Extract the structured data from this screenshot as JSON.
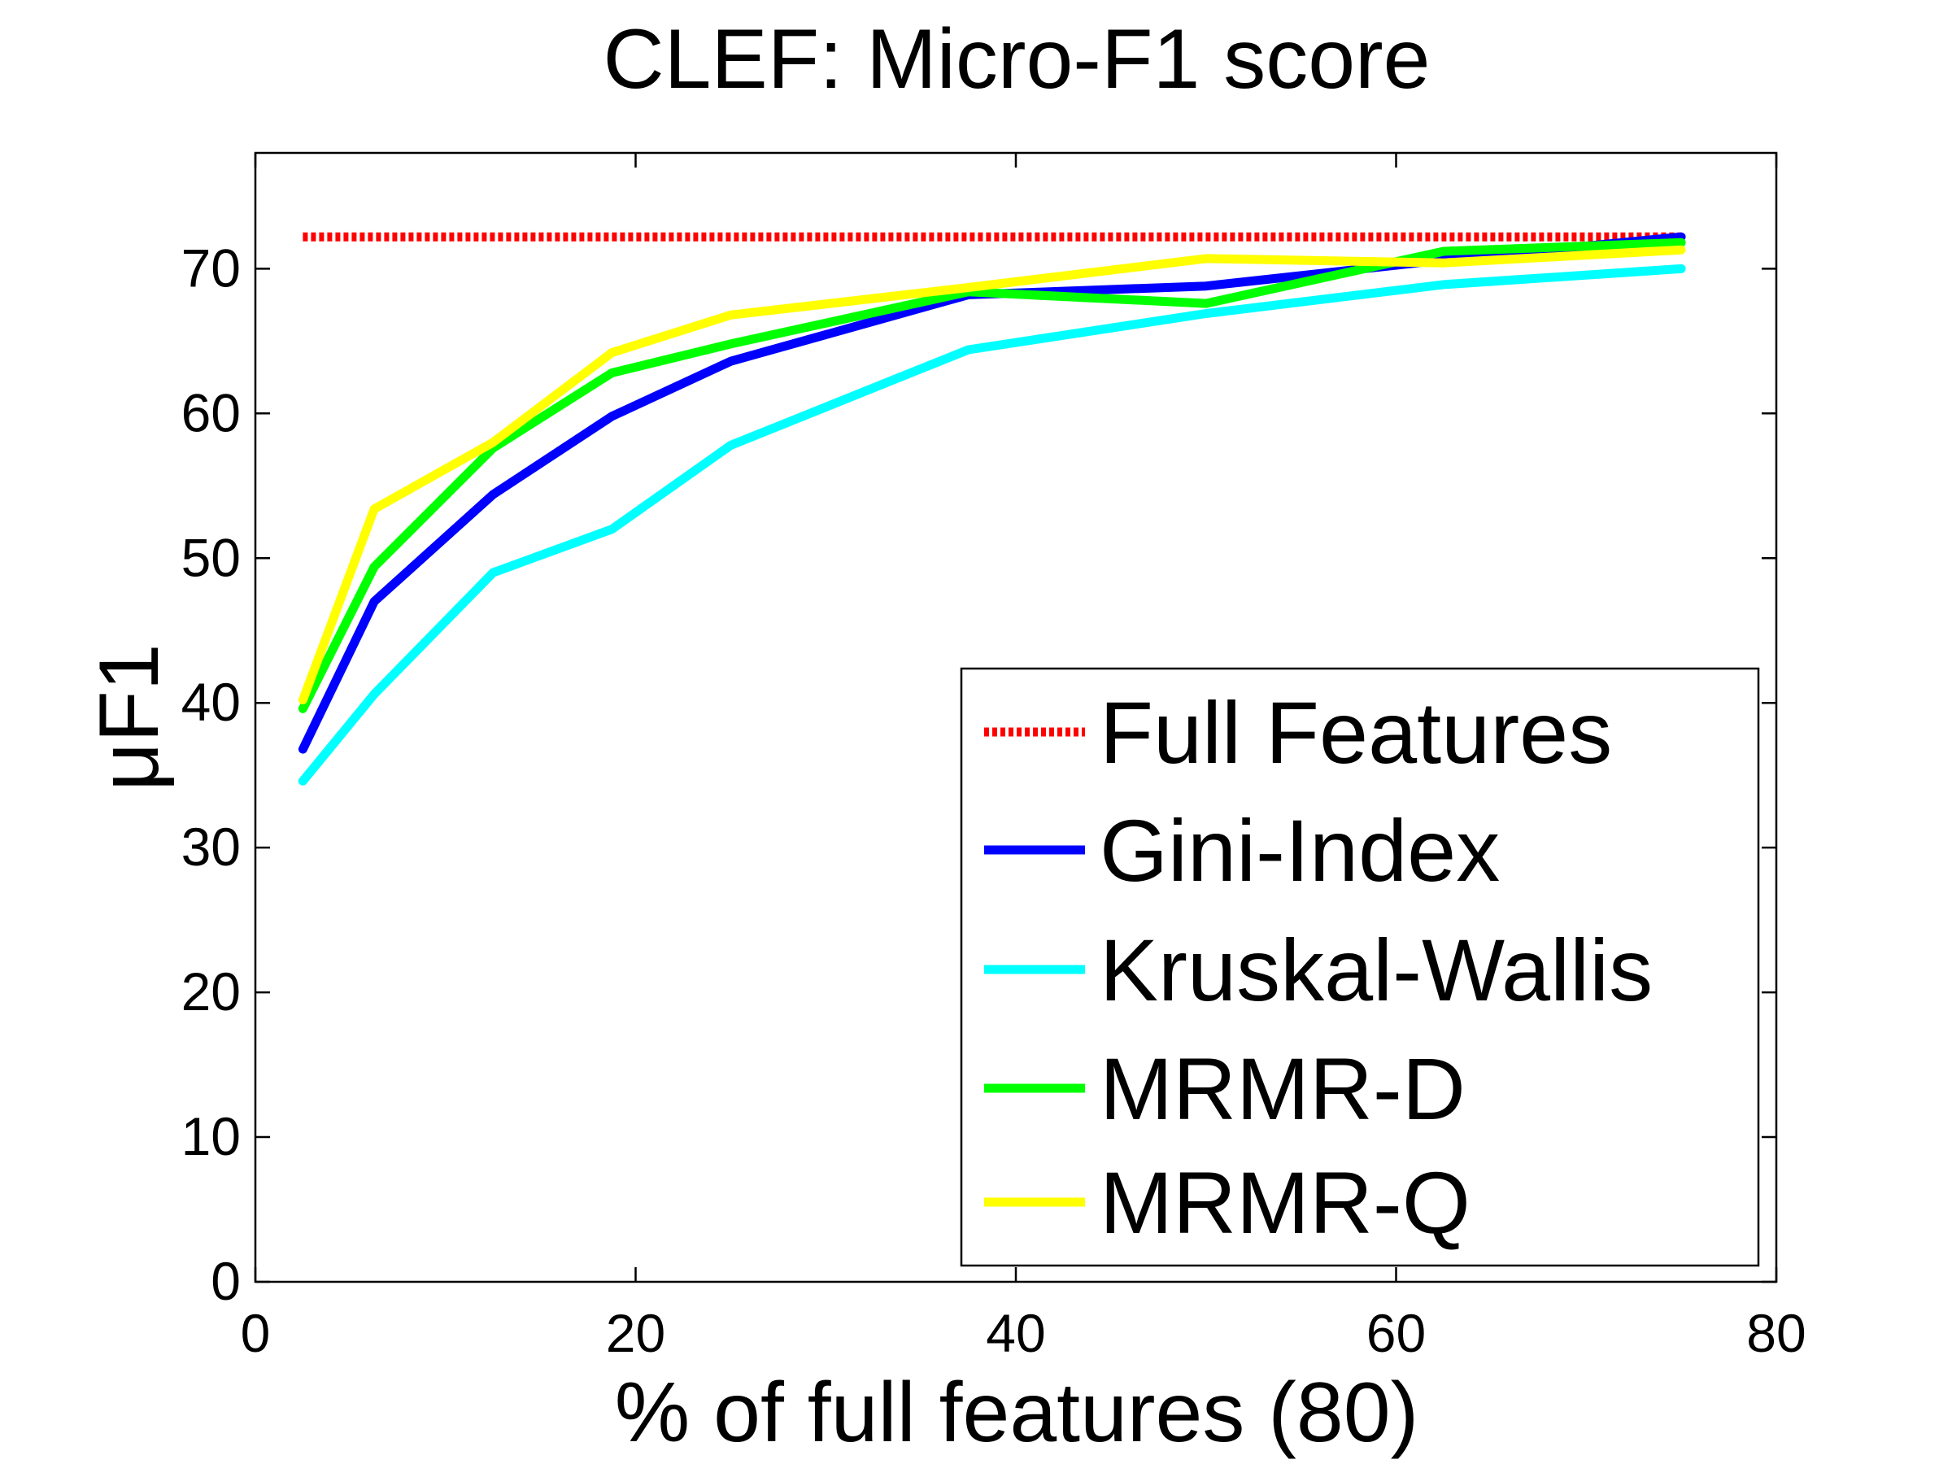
{
  "chart_data": {
    "type": "line",
    "title": "CLEF: Micro-F1 score",
    "xlabel": "% of full features (80)",
    "ylabel": "μF1",
    "xlim": [
      0,
      80
    ],
    "ylim": [
      0,
      78
    ],
    "xticks": [
      "0",
      "20",
      "40",
      "60",
      "80"
    ],
    "yticks": [
      "0",
      "10",
      "20",
      "30",
      "40",
      "50",
      "60",
      "70"
    ],
    "x": [
      2.5,
      6.25,
      12.5,
      18.75,
      25,
      37.5,
      50,
      62.5,
      75
    ],
    "legend_position": "lower-right",
    "series": [
      {
        "name": "Full Features",
        "color": "#ff0000",
        "style": "dotted",
        "values": [
          72.2,
          72.2,
          72.2,
          72.2,
          72.2,
          72.2,
          72.2,
          72.2,
          72.2
        ]
      },
      {
        "name": "Gini-Index",
        "color": "#0000ff",
        "style": "solid",
        "values": [
          36.8,
          47.0,
          54.4,
          59.8,
          63.6,
          68.2,
          68.8,
          70.6,
          72.2
        ]
      },
      {
        "name": "Kruskal-Wallis",
        "color": "#00ffff",
        "style": "solid",
        "values": [
          34.6,
          40.6,
          49.0,
          52.0,
          57.8,
          64.4,
          66.9,
          68.9,
          70.0
        ]
      },
      {
        "name": "MRMR-D",
        "color": "#00ff00",
        "style": "solid",
        "values": [
          39.6,
          49.4,
          57.6,
          62.8,
          64.8,
          68.4,
          67.6,
          71.2,
          71.8
        ]
      },
      {
        "name": "MRMR-Q",
        "color": "#ffff00",
        "style": "solid",
        "values": [
          40.2,
          53.4,
          58.0,
          64.2,
          66.8,
          68.7,
          70.7,
          70.4,
          71.3
        ]
      }
    ]
  }
}
